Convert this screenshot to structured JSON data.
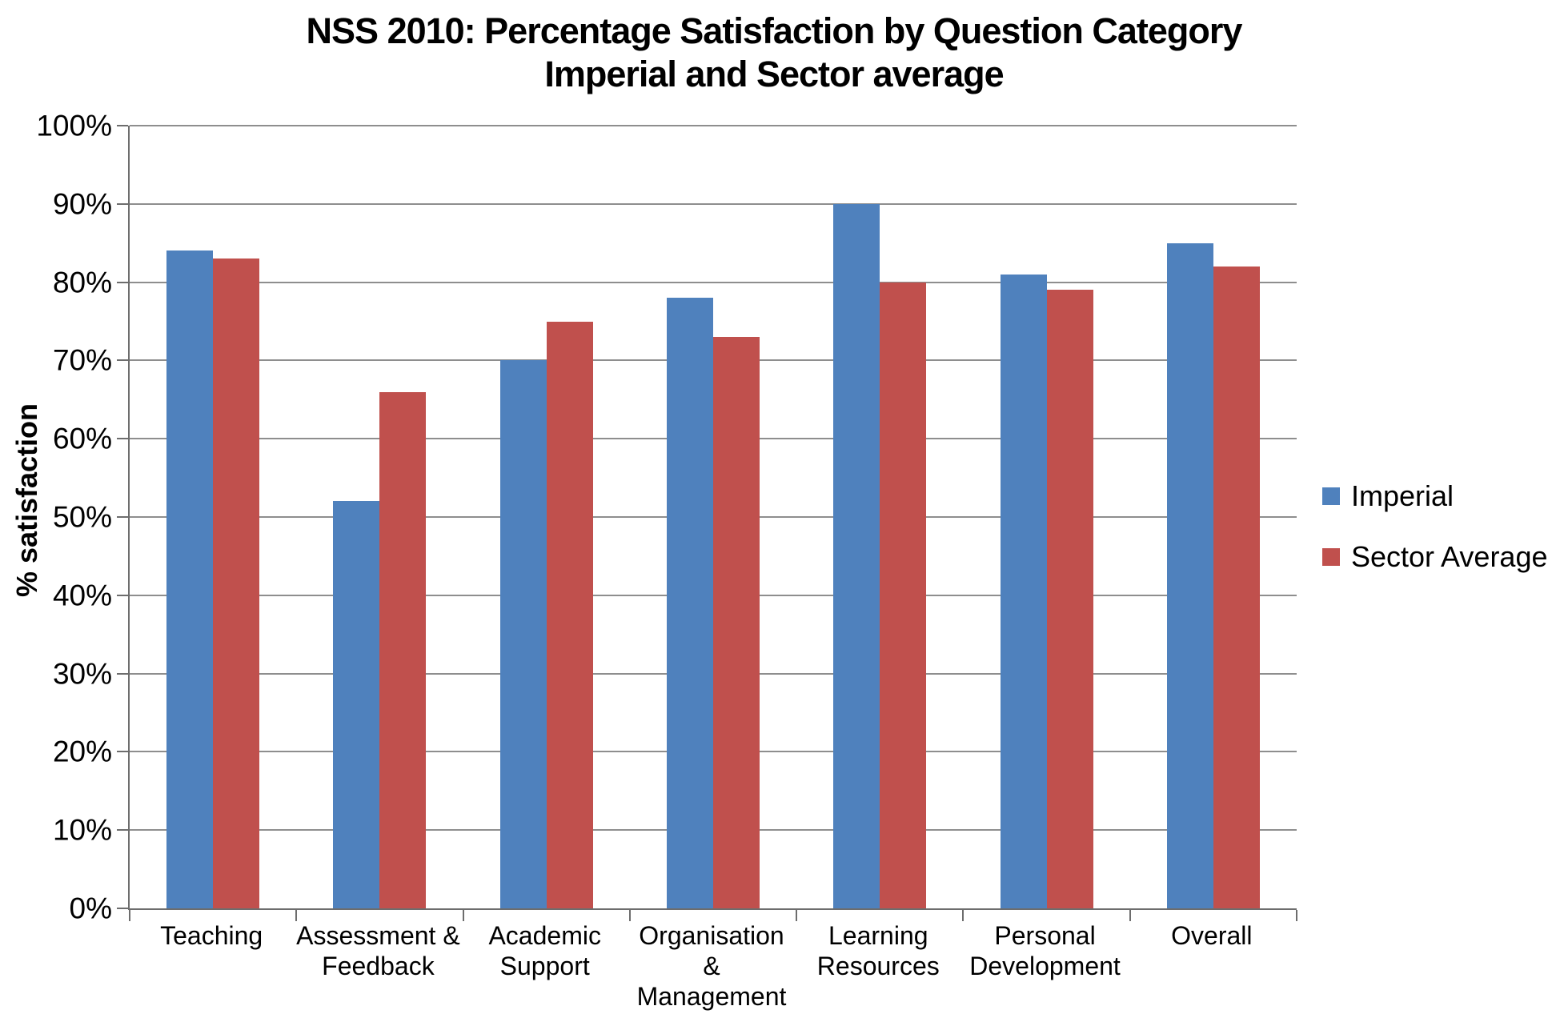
{
  "title": {
    "line1": "NSS 2010: Percentage Satisfaction by Question Category",
    "line2": "Imperial and Sector average"
  },
  "y_axis": {
    "title": "% satisfaction",
    "ticks": [
      "0%",
      "10%",
      "20%",
      "30%",
      "40%",
      "50%",
      "60%",
      "70%",
      "80%",
      "90%",
      "100%"
    ]
  },
  "legend": [
    {
      "label": "Imperial",
      "color": "#4F81BD"
    },
    {
      "label": "Sector Average",
      "color": "#C0504D"
    }
  ],
  "colors": {
    "imperial": "#4F81BD",
    "sector_average": "#C0504D",
    "gridline": "#8e8e8e",
    "axis": "#6d6d6d",
    "background": "#ffffff"
  },
  "chart_data": {
    "type": "bar",
    "title": "NSS 2010: Percentage Satisfaction by Question Category — Imperial and Sector average",
    "categories": [
      "Teaching",
      "Assessment & Feedback",
      "Academic Support",
      "Organisation & Management",
      "Learning Resources",
      "Personal Development",
      "Overall"
    ],
    "category_label_lines": [
      [
        "Teaching"
      ],
      [
        "Assessment &",
        "Feedback"
      ],
      [
        "Academic",
        "Support"
      ],
      [
        "Organisation",
        "&",
        "Management"
      ],
      [
        "Learning",
        "Resources"
      ],
      [
        "Personal",
        "Development"
      ],
      [
        "Overall"
      ]
    ],
    "series": [
      {
        "name": "Imperial",
        "color": "#4F81BD",
        "values": [
          84,
          52,
          70,
          78,
          90,
          81,
          85
        ]
      },
      {
        "name": "Sector Average",
        "color": "#C0504D",
        "values": [
          83,
          66,
          75,
          73,
          80,
          79,
          82
        ]
      }
    ],
    "xlabel": "",
    "ylabel": "% satisfaction",
    "ylim": [
      0,
      100
    ],
    "ytick_step": 10,
    "grid": true,
    "legend_position": "right"
  }
}
